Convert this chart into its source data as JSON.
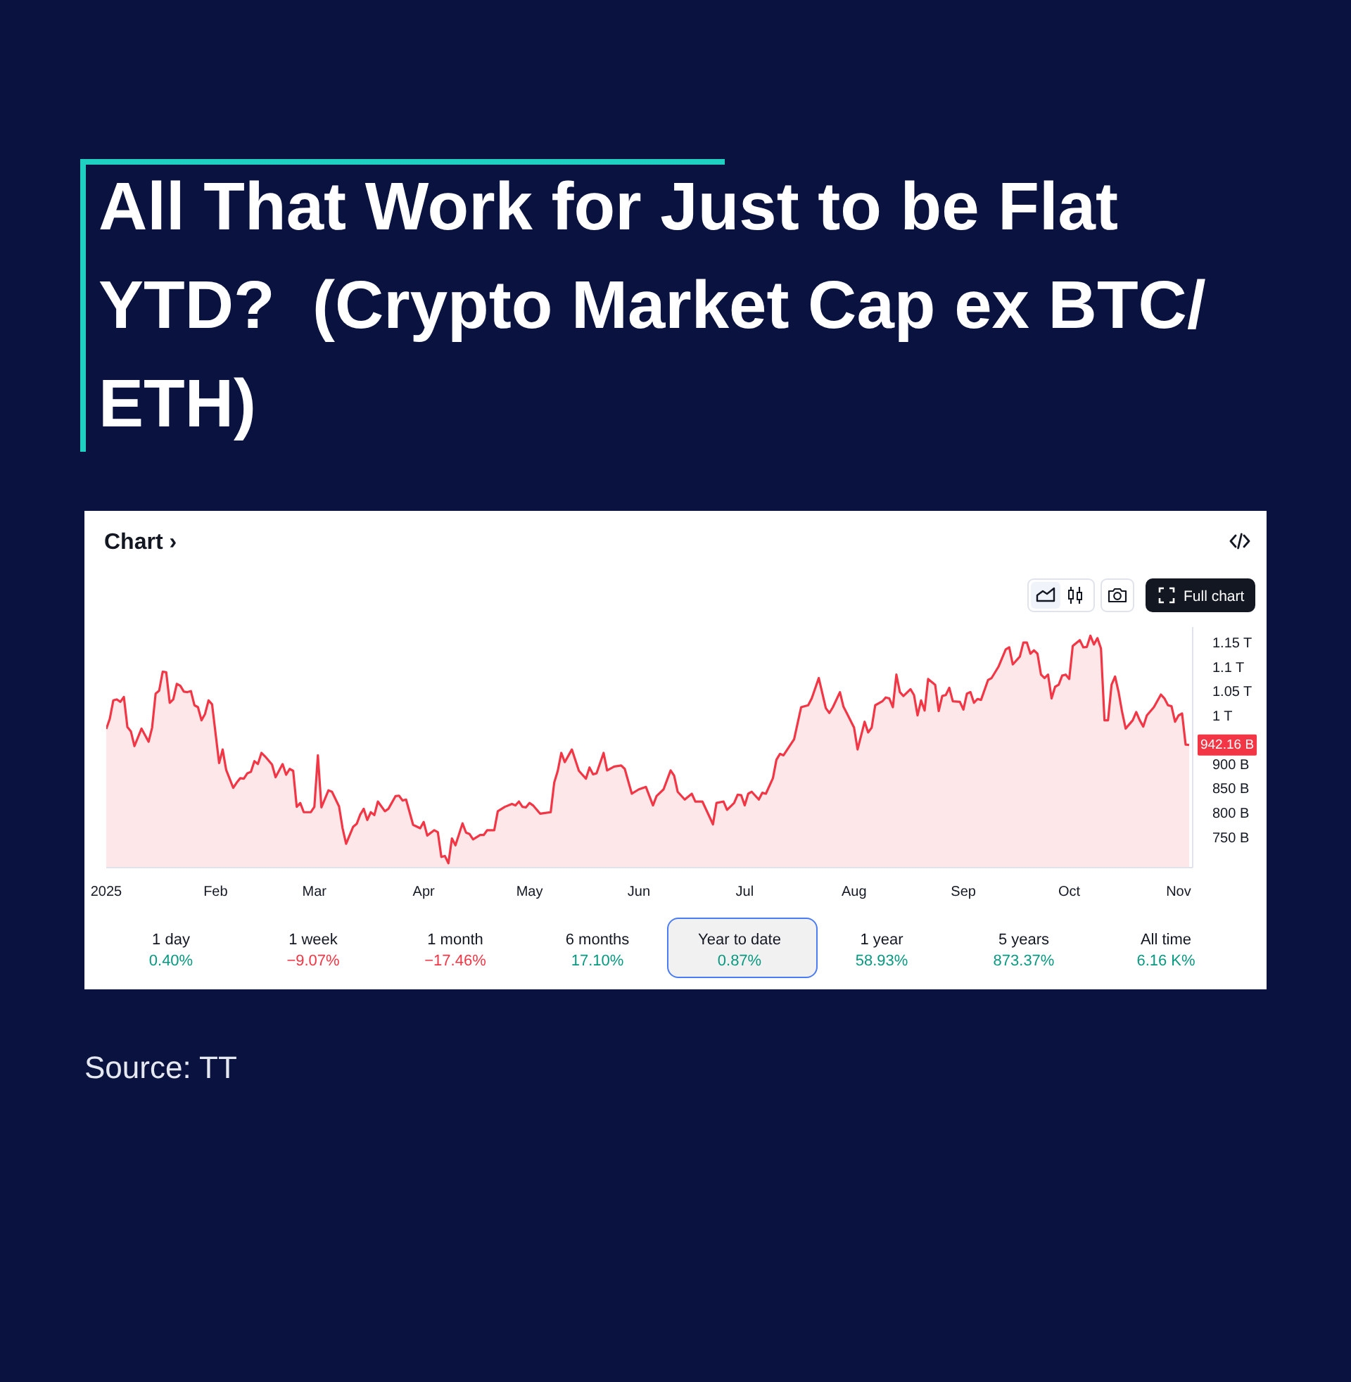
{
  "chart_data": {
    "type": "area",
    "title": "All That Work for Just to be Flat YTD?  (Crypto Market Cap ex BTC/ ETH)",
    "x": [
      "2025-01-01",
      "2025-01-02",
      "2025-01-03",
      "2025-01-04",
      "2025-01-05",
      "2025-01-06",
      "2025-01-07",
      "2025-01-08",
      "2025-01-09",
      "2025-01-11",
      "2025-01-13",
      "2025-01-14",
      "2025-01-15",
      "2025-01-16",
      "2025-01-17",
      "2025-01-18",
      "2025-01-19",
      "2025-01-20",
      "2025-01-21",
      "2025-01-22",
      "2025-01-23",
      "2025-01-24",
      "2025-01-25",
      "2025-01-26",
      "2025-01-27",
      "2025-01-28",
      "2025-01-29",
      "2025-01-30",
      "2025-01-31",
      "2025-02-02",
      "2025-02-03",
      "2025-02-04",
      "2025-02-06",
      "2025-02-07",
      "2025-02-08",
      "2025-02-09",
      "2025-02-10",
      "2025-02-11",
      "2025-02-12",
      "2025-02-13",
      "2025-02-14",
      "2025-02-15",
      "2025-02-17",
      "2025-02-18",
      "2025-02-20",
      "2025-02-21",
      "2025-02-22",
      "2025-02-23",
      "2025-02-24",
      "2025-02-25",
      "2025-02-26",
      "2025-02-28",
      "2025-03-01",
      "2025-03-02",
      "2025-03-03",
      "2025-03-05",
      "2025-03-06",
      "2025-03-08",
      "2025-03-09",
      "2025-03-10",
      "2025-03-12",
      "2025-03-13",
      "2025-03-14",
      "2025-03-15",
      "2025-03-16",
      "2025-03-17",
      "2025-03-18",
      "2025-03-19",
      "2025-03-21",
      "2025-03-22",
      "2025-03-24",
      "2025-03-25",
      "2025-03-26",
      "2025-03-27",
      "2025-03-29",
      "2025-03-31",
      "2025-04-01",
      "2025-04-02",
      "2025-04-04",
      "2025-04-05",
      "2025-04-06",
      "2025-04-07",
      "2025-04-08",
      "2025-04-09",
      "2025-04-10",
      "2025-04-12",
      "2025-04-13",
      "2025-04-14",
      "2025-04-15",
      "2025-04-17",
      "2025-04-18",
      "2025-04-19",
      "2025-04-21",
      "2025-04-22",
      "2025-04-24",
      "2025-04-26",
      "2025-04-27",
      "2025-04-28",
      "2025-04-29",
      "2025-04-30",
      "2025-05-01",
      "2025-05-02",
      "2025-05-04",
      "2025-05-05",
      "2025-05-07",
      "2025-05-08",
      "2025-05-09",
      "2025-05-10",
      "2025-05-11",
      "2025-05-13",
      "2025-05-15",
      "2025-05-17",
      "2025-05-18",
      "2025-05-19",
      "2025-05-20",
      "2025-05-22",
      "2025-05-23",
      "2025-05-25",
      "2025-05-27",
      "2025-05-28",
      "2025-05-30",
      "2025-06-01",
      "2025-06-03",
      "2025-06-05",
      "2025-06-06",
      "2025-06-08",
      "2025-06-10",
      "2025-06-11",
      "2025-06-12",
      "2025-06-14",
      "2025-06-16",
      "2025-06-17",
      "2025-06-19",
      "2025-06-21",
      "2025-06-22",
      "2025-06-23",
      "2025-06-25",
      "2025-06-26",
      "2025-06-28",
      "2025-06-29",
      "2025-06-30",
      "2025-07-01",
      "2025-07-02",
      "2025-07-03",
      "2025-07-05",
      "2025-07-06",
      "2025-07-07",
      "2025-07-09",
      "2025-07-10",
      "2025-07-11",
      "2025-07-12",
      "2025-07-14",
      "2025-07-15",
      "2025-07-17",
      "2025-07-19",
      "2025-07-20",
      "2025-07-22",
      "2025-07-24",
      "2025-07-25",
      "2025-07-26",
      "2025-07-28",
      "2025-07-29",
      "2025-07-30",
      "2025-08-01",
      "2025-08-02",
      "2025-08-04",
      "2025-08-05",
      "2025-08-06",
      "2025-08-07",
      "2025-08-09",
      "2025-08-10",
      "2025-08-11",
      "2025-08-12",
      "2025-08-13",
      "2025-08-14",
      "2025-08-15",
      "2025-08-17",
      "2025-08-18",
      "2025-08-19",
      "2025-08-20",
      "2025-08-21",
      "2025-08-22",
      "2025-08-24",
      "2025-08-25",
      "2025-08-26",
      "2025-08-27",
      "2025-08-28",
      "2025-08-29",
      "2025-08-31",
      "2025-09-01",
      "2025-09-02",
      "2025-09-03",
      "2025-09-04",
      "2025-09-05",
      "2025-09-06",
      "2025-09-08",
      "2025-09-09",
      "2025-09-11",
      "2025-09-13",
      "2025-09-14",
      "2025-09-15",
      "2025-09-17",
      "2025-09-18",
      "2025-09-19",
      "2025-09-20",
      "2025-09-21",
      "2025-09-22",
      "2025-09-23",
      "2025-09-24",
      "2025-09-25",
      "2025-09-26",
      "2025-09-27",
      "2025-09-28",
      "2025-09-29",
      "2025-09-30",
      "2025-10-01",
      "2025-10-02",
      "2025-10-04",
      "2025-10-05",
      "2025-10-06",
      "2025-10-07",
      "2025-10-08",
      "2025-10-09",
      "2025-10-10",
      "2025-10-11",
      "2025-10-12",
      "2025-10-13",
      "2025-10-14",
      "2025-10-15",
      "2025-10-16",
      "2025-10-17",
      "2025-10-19",
      "2025-10-20",
      "2025-10-21",
      "2025-10-22",
      "2025-10-23",
      "2025-10-25",
      "2025-10-27",
      "2025-10-28",
      "2025-10-29",
      "2025-10-30",
      "2025-10-31",
      "2025-11-01",
      "2025-11-02",
      "2025-11-03",
      "2025-11-04"
    ],
    "values": [
      975000000000.0,
      996000000000.0,
      1034000000000.0,
      1036000000000.0,
      1031000000000.0,
      1041000000000.0,
      979000000000.0,
      970000000000.0,
      940000000000.0,
      976000000000.0,
      949000000000.0,
      978000000000.0,
      1048000000000.0,
      1054000000000.0,
      1093000000000.0,
      1092000000000.0,
      1029000000000.0,
      1036000000000.0,
      1068000000000.0,
      1064000000000.0,
      1052000000000.0,
      1051000000000.0,
      1053000000000.0,
      1024000000000.0,
      1020000000000.0,
      993000000000.0,
      1006000000000.0,
      1034000000000.0,
      1026000000000.0,
      905000000000.0,
      933000000000.0,
      891000000000.0,
      854000000000.0,
      865000000000.0,
      874000000000.0,
      873000000000.0,
      884000000000.0,
      887000000000.0,
      909000000000.0,
      903000000000.0,
      926000000000.0,
      919000000000.0,
      902000000000.0,
      876000000000.0,
      903000000000.0,
      881000000000.0,
      893000000000.0,
      889000000000.0,
      815000000000.0,
      823000000000.0,
      804000000000.0,
      804000000000.0,
      815000000000.0,
      921000000000.0,
      814000000000.0,
      849000000000.0,
      846000000000.0,
      816000000000.0,
      771000000000.0,
      739000000000.0,
      774000000000.0,
      780000000000.0,
      799000000000.0,
      811000000000.0,
      788000000000.0,
      804000000000.0,
      798000000000.0,
      826000000000.0,
      806000000000.0,
      811000000000.0,
      837000000000.0,
      838000000000.0,
      828000000000.0,
      830000000000.0,
      778000000000.0,
      771000000000.0,
      784000000000.0,
      756000000000.0,
      767000000000.0,
      763000000000.0,
      712000000000.0,
      714000000000.0,
      699000000000.0,
      750000000000.0,
      736000000000.0,
      781000000000.0,
      762000000000.0,
      759000000000.0,
      748000000000.0,
      757000000000.0,
      757000000000.0,
      767000000000.0,
      767000000000.0,
      806000000000.0,
      815000000000.0,
      821000000000.0,
      818000000000.0,
      826000000000.0,
      815000000000.0,
      814000000000.0,
      823000000000.0,
      818000000000.0,
      801000000000.0,
      802000000000.0,
      804000000000.0,
      865000000000.0,
      889000000000.0,
      926000000000.0,
      907000000000.0,
      933000000000.0,
      889000000000.0,
      873000000000.0,
      896000000000.0,
      882000000000.0,
      884000000000.0,
      926000000000.0,
      890000000000.0,
      898000000000.0,
      900000000000.0,
      893000000000.0,
      842000000000.0,
      851000000000.0,
      856000000000.0,
      818000000000.0,
      837000000000.0,
      851000000000.0,
      890000000000.0,
      879000000000.0,
      846000000000.0,
      830000000000.0,
      842000000000.0,
      826000000000.0,
      826000000000.0,
      795000000000.0,
      779000000000.0,
      823000000000.0,
      826000000000.0,
      809000000000.0,
      823000000000.0,
      840000000000.0,
      839000000000.0,
      818000000000.0,
      842000000000.0,
      846000000000.0,
      830000000000.0,
      844000000000.0,
      842000000000.0,
      874000000000.0,
      912000000000.0,
      924000000000.0,
      921000000000.0,
      943000000000.0,
      954000000000.0,
      1020000000000.0,
      1024000000000.0,
      1038000000000.0,
      1080000000000.0,
      1018000000000.0,
      1008000000000.0,
      1020000000000.0,
      1051000000000.0,
      1021000000000.0,
      1007000000000.0,
      978000000000.0,
      933000000000.0,
      990000000000.0,
      968000000000.0,
      978000000000.0,
      1024000000000.0,
      1032000000000.0,
      1040000000000.0,
      1038000000000.0,
      1020000000000.0,
      1087000000000.0,
      1051000000000.0,
      1043000000000.0,
      1057000000000.0,
      1045000000000.0,
      1003000000000.0,
      1034000000000.0,
      1013000000000.0,
      1078000000000.0,
      1066000000000.0,
      1012000000000.0,
      1043000000000.0,
      1045000000000.0,
      1060000000000.0,
      1032000000000.0,
      1031000000000.0,
      1015000000000.0,
      1048000000000.0,
      1051000000000.0,
      1029000000000.0,
      1037000000000.0,
      1035000000000.0,
      1076000000000.0,
      1080000000000.0,
      1104000000000.0,
      1139000000000.0,
      1143000000000.0,
      1108000000000.0,
      1124000000000.0,
      1153000000000.0,
      1153000000000.0,
      1130000000000.0,
      1137000000000.0,
      1130000000000.0,
      1087000000000.0,
      1080000000000.0,
      1087000000000.0,
      1038000000000.0,
      1062000000000.0,
      1066000000000.0,
      1085000000000.0,
      1087000000000.0,
      1078000000000.0,
      1146000000000.0,
      1158000000000.0,
      1143000000000.0,
      1144000000000.0,
      1167000000000.0,
      1149000000000.0,
      1162000000000.0,
      1141000000000.0,
      993000000000.0,
      993000000000.0,
      1066000000000.0,
      1083000000000.0,
      1051000000000.0,
      1010000000000.0,
      976000000000.0,
      993000000000.0,
      1010000000000.0,
      993000000000.0,
      980000000000.0,
      1003000000000.0,
      1020000000000.0,
      1046000000000.0,
      1038000000000.0,
      1024000000000.0,
      1022000000000.0,
      990000000000.0,
      1003000000000.0,
      1007000000000.0,
      943000000000.0,
      942160000000.0
    ],
    "color": "#f23645",
    "xlim": [
      "2025-01-01",
      "2025-11-05"
    ],
    "xticks": [
      {
        "value": "2025-01-01",
        "label": "2025"
      },
      {
        "value": "2025-02-01",
        "label": "Feb"
      },
      {
        "value": "2025-03-01",
        "label": "Mar"
      },
      {
        "value": "2025-04-01",
        "label": "Apr"
      },
      {
        "value": "2025-05-01",
        "label": "May"
      },
      {
        "value": "2025-06-01",
        "label": "Jun"
      },
      {
        "value": "2025-07-01",
        "label": "Jul"
      },
      {
        "value": "2025-08-01",
        "label": "Aug"
      },
      {
        "value": "2025-09-01",
        "label": "Sep"
      },
      {
        "value": "2025-10-01",
        "label": "Oct"
      },
      {
        "value": "2025-11-01",
        "label": "Nov"
      }
    ],
    "ylim": [
      690000000000.0,
      1185000000000.0
    ],
    "yticks": [
      {
        "value": 750000000000.0,
        "label": "750 B"
      },
      {
        "value": 800000000000.0,
        "label": "800 B"
      },
      {
        "value": 850000000000.0,
        "label": "850 B"
      },
      {
        "value": 900000000000.0,
        "label": "900 B"
      },
      {
        "value": 1000000000000.0,
        "label": "1 T"
      },
      {
        "value": 1050000000000.0,
        "label": "1.05 T"
      },
      {
        "value": 1100000000000.0,
        "label": "1.1 T"
      },
      {
        "value": 1150000000000.0,
        "label": "1.15 T"
      }
    ],
    "grid": false,
    "annotations": [
      "Chart ›",
      "Full chart",
      "1 day",
      "0.40%",
      "1 week",
      "−9.07%",
      "1 month",
      "−17.46%",
      "6 months",
      "17.10%",
      "Year to date",
      "0.87%",
      "1 year",
      "58.93%",
      "5 years",
      "873.37%",
      "All time",
      "6.16 K%",
      "Source: TT",
      {
        "text": "942.16 B",
        "x": "2025-11-04",
        "y": 942160000000.0
      }
    ]
  }
}
